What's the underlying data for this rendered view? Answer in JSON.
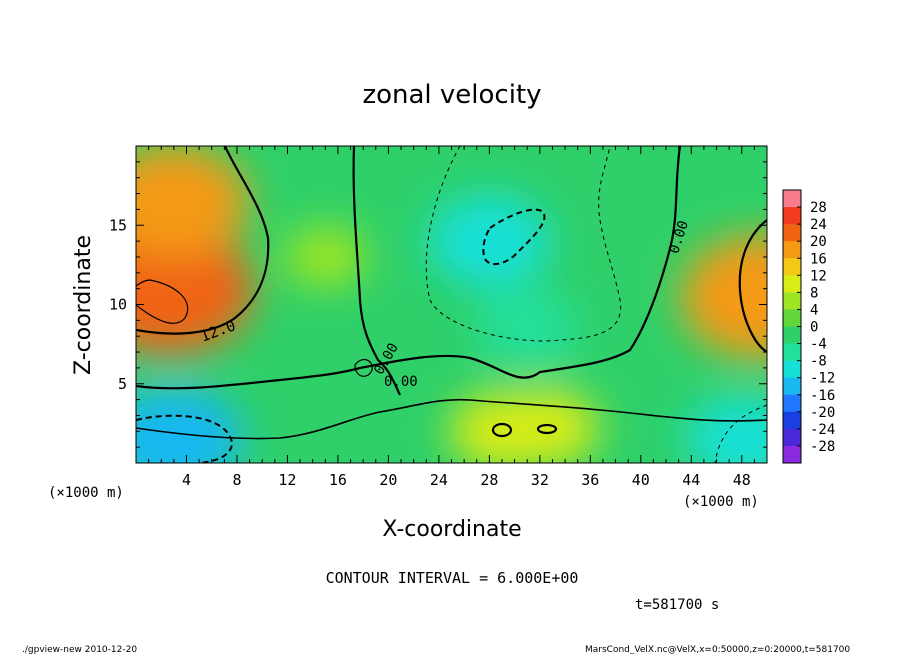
{
  "chart_data": {
    "type": "heatmap",
    "title": "zonal velocity",
    "xlabel": "X-coordinate",
    "ylabel": "Z-coordinate",
    "x_unit": "(×1000 m)",
    "y_unit": "(×1000 m)",
    "xlim": [
      0,
      50
    ],
    "ylim": [
      0,
      20
    ],
    "x_ticks": [
      4,
      8,
      12,
      16,
      20,
      24,
      28,
      32,
      36,
      40,
      44,
      48
    ],
    "y_ticks": [
      5,
      10,
      15
    ],
    "colorbar_levels": [
      28,
      24,
      20,
      16,
      12,
      8,
      4,
      0,
      -4,
      -8,
      -12,
      -16,
      -20,
      -24,
      -28
    ],
    "contour_labels": [
      "12.0",
      "0.00",
      "0.00",
      "0.00"
    ],
    "contour_interval_text": "CONTOUR INTERVAL = 6.000E+00",
    "time_text": "t=581700 s",
    "features": [
      {
        "x": 2.5,
        "z": 11.0,
        "value": 20
      },
      {
        "x": 3.0,
        "z": 16.5,
        "value": 16
      },
      {
        "x": 3.0,
        "z": 1.5,
        "value": -14
      },
      {
        "x": 28.0,
        "z": 14.0,
        "value": -11
      },
      {
        "x": 31.0,
        "z": 8.5,
        "value": -8
      },
      {
        "x": 29.0,
        "z": 2.0,
        "value": 8
      },
      {
        "x": 32.5,
        "z": 2.2,
        "value": 8
      },
      {
        "x": 49.5,
        "z": 10.5,
        "value": 18
      },
      {
        "x": 48.0,
        "z": 1.5,
        "value": -9
      },
      {
        "x": 15.0,
        "z": 13.0,
        "value": 4
      }
    ]
  },
  "footer": {
    "left": "./gpview-new  2010-12-20",
    "right": "MarsCond_VelX.nc@VelX,x=0:50000,z=0:20000,t=581700"
  }
}
